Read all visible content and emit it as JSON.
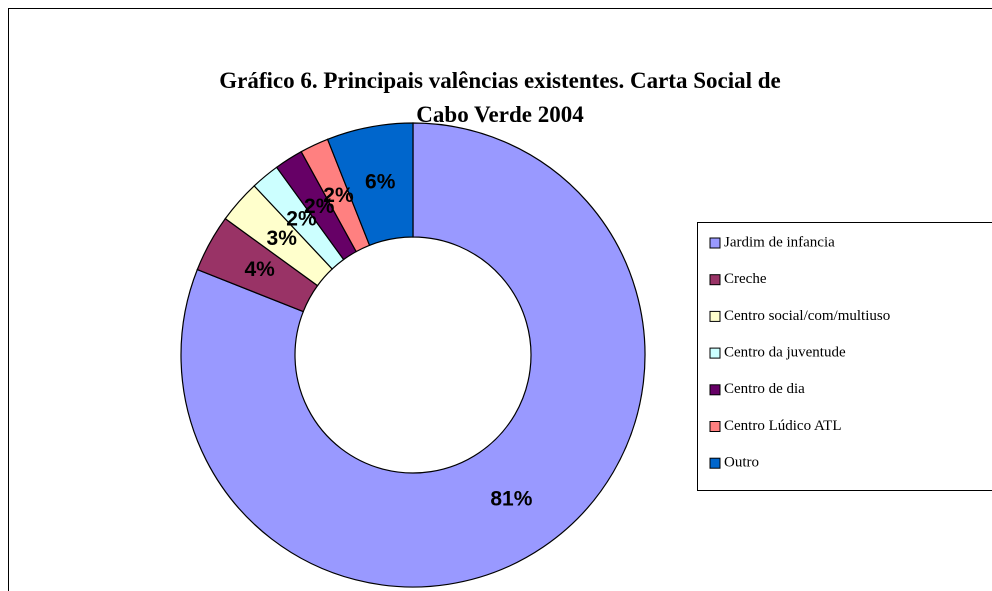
{
  "chart_data": {
    "type": "pie",
    "title": [
      "Gráfico 6. Principais valências existentes.  Carta Social de",
      "Cabo Verde 2004"
    ],
    "categories": [
      "Jardim de infancia",
      "Creche",
      "Centro social/com/multiuso",
      "Centro da juventude",
      "Centro de dia",
      "Centro Lúdico  ATL",
      "Outro"
    ],
    "values": [
      81,
      4,
      3,
      2,
      2,
      2,
      6
    ],
    "value_labels": [
      "81%",
      "4%",
      "3%",
      "2%",
      "2%",
      "2%",
      "6%"
    ],
    "colors": [
      "#9999ff",
      "#993366",
      "#ffffcc",
      "#ccffff",
      "#660066",
      "#ff8080",
      "#0066cc"
    ],
    "legend": "right"
  }
}
